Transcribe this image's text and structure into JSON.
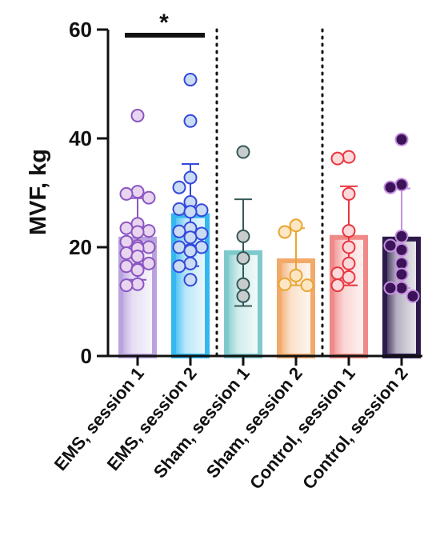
{
  "chart_data": {
    "type": "bar",
    "title": "",
    "xlabel": "",
    "ylabel": "MVF, kg",
    "ylim": [
      0,
      60
    ],
    "yticks": [
      0,
      20,
      40,
      60
    ],
    "ytick_labels": [
      "0",
      "20",
      "40",
      "60"
    ],
    "error_bars": "mean ± SD",
    "grid": false,
    "legend": "none",
    "categories": [
      "EMS, session 1",
      "EMS, session 2",
      "Sham, session 1",
      "Sham, session 2",
      "Control, session 1",
      "Control, session 2"
    ],
    "series": [
      {
        "values": [
          21.5,
          25.8,
          19.0,
          17.5,
          21.8,
          21.5
        ],
        "error_high": [
          29.0,
          35.3,
          28.8,
          23.5,
          31.2,
          30.8
        ],
        "error_low": [
          14.0,
          16.5,
          9.2,
          13.0,
          13.0,
          12.5
        ],
        "colors": [
          "#b9a3de",
          "#33b8f0",
          "#7fc9cc",
          "#f2aa6a",
          "#f08a88",
          "#2b1a4a"
        ],
        "point_fill": [
          "#e9d5f0",
          "#c9dcf3",
          "#c8cccc",
          "#fde6c4",
          "#fcd9da",
          "#3c1358"
        ],
        "point_stroke": [
          "#8b56c2",
          "#3448dc",
          "#355a58",
          "#e8a632",
          "#e8363f",
          "#c490e0"
        ]
      }
    ],
    "points": [
      [
        44.2,
        30.2,
        29.8,
        29.1,
        24.3,
        23.5,
        23.0,
        22.8,
        21.0,
        20.2,
        20.0,
        19.8,
        18.9,
        18.3,
        17.0,
        16.5,
        16.0,
        15.8,
        13.0,
        13.2
      ],
      [
        50.8,
        43.2,
        32.8,
        31.0,
        28.3,
        27.0,
        26.8,
        26.5,
        23.5,
        22.9,
        22.5,
        21.8,
        20.0,
        20.0,
        19.5,
        19.3,
        17.0,
        16.5,
        14.0
      ],
      [
        37.5,
        22.0,
        18.0,
        13.2,
        11.0
      ],
      [
        24.0,
        22.8,
        14.8,
        13.2,
        13.0
      ],
      [
        36.6,
        36.3,
        29.8,
        23.0,
        20.0,
        17.0,
        15.2,
        14.5,
        13.0
      ],
      [
        39.8,
        31.5,
        31.0,
        22.0,
        20.3,
        19.5,
        17.0,
        15.0,
        12.5,
        12.5,
        11.0
      ]
    ],
    "significance": {
      "label": "*",
      "from": "EMS, session 1",
      "to": "EMS, session 2"
    },
    "separators_after": [
      "EMS, session 2",
      "Sham, session 2"
    ]
  }
}
